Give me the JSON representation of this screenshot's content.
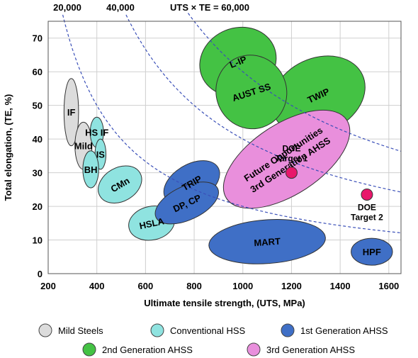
{
  "chart_data": {
    "type": "scatter",
    "xlabel": "Ultimate tensile strength, (UTS, MPa)",
    "ylabel": "Total elongation, (TE, %)",
    "xlim": [
      200,
      1650
    ],
    "ylim": [
      0,
      75
    ],
    "x_ticks": [
      200,
      400,
      600,
      800,
      1000,
      1200,
      1400,
      1600
    ],
    "y_ticks": [
      0,
      10,
      20,
      30,
      40,
      50,
      60,
      70
    ],
    "grid": true,
    "iso_curves": {
      "top_labels": [
        "20,000",
        "40,000",
        "UTS × TE = 60,000"
      ],
      "products": [
        20000,
        40000,
        60000
      ]
    },
    "categories": [
      {
        "name": "Mild Steels",
        "color": "#dcdcdc"
      },
      {
        "name": "Conventional HSS",
        "color": "#8fe3e0"
      },
      {
        "name": "1st Generation AHSS",
        "color": "#3f6fc6"
      },
      {
        "name": "2nd Generation AHSS",
        "color": "#44c244"
      },
      {
        "name": "3rd Generation AHSS",
        "color": "#e98fdc"
      }
    ],
    "regions": [
      {
        "label": "IF",
        "category": 0,
        "cx": 295,
        "cy": 48,
        "rx": 60,
        "ry": 10,
        "angle": 0
      },
      {
        "label": "Mild",
        "category": 0,
        "cx": 345,
        "cy": 38,
        "rx": 70,
        "ry": 7,
        "angle": 0
      },
      {
        "label": "HS IF",
        "category": 1,
        "cx": 400,
        "cy": 42,
        "rx": 55,
        "ry": 4.5,
        "angle": 0
      },
      {
        "label": "IS",
        "category": 1,
        "cx": 415,
        "cy": 35.5,
        "rx": 45,
        "ry": 4.5,
        "angle": 0
      },
      {
        "label": "BH",
        "category": 1,
        "cx": 375,
        "cy": 31,
        "rx": 65,
        "ry": 5.5,
        "angle": 0
      },
      {
        "label": "CMn",
        "category": 1,
        "cx": 495,
        "cy": 26.5,
        "rx": 190,
        "ry": 5,
        "angle": -30
      },
      {
        "label": "HSLA",
        "category": 1,
        "cx": 625,
        "cy": 15,
        "rx": 190,
        "ry": 5,
        "angle": -12
      },
      {
        "label": "TRIP",
        "category": 2,
        "cx": 790,
        "cy": 27,
        "rx": 250,
        "ry": 5.5,
        "angle": -30
      },
      {
        "label": "DP, CP",
        "category": 2,
        "cx": 770,
        "cy": 21,
        "rx": 280,
        "ry": 5,
        "angle": -25
      },
      {
        "label": "MART",
        "category": 2,
        "cx": 1100,
        "cy": 9.5,
        "rx": 480,
        "ry": 6.5,
        "angle": -4
      },
      {
        "label": "HPF",
        "category": 2,
        "cx": 1530,
        "cy": 6.5,
        "rx": 170,
        "ry": 4,
        "angle": 0
      },
      {
        "label": "L-IP",
        "category": 3,
        "cx": 980,
        "cy": 63,
        "rx": 320,
        "ry": 10,
        "angle": -22
      },
      {
        "label": "TWIP",
        "category": 3,
        "cx": 1310,
        "cy": 53,
        "rx": 400,
        "ry": 11,
        "angle": -25
      },
      {
        "label": "AUST SS",
        "category": 3,
        "cx": 1035,
        "cy": 54,
        "rx": 290,
        "ry": 11,
        "angle": -18
      },
      {
        "label": "Future Opportunities\n3rd Generation AHSS",
        "category": 4,
        "cx": 1180,
        "cy": 34,
        "rx": 590,
        "ry": 10.5,
        "angle": -33
      }
    ],
    "points": [
      {
        "label": "DOE\nTarget 1",
        "x": 1200,
        "y": 30
      },
      {
        "label": "DOE\nTarget 2",
        "x": 1510,
        "y": 23.5
      }
    ]
  }
}
